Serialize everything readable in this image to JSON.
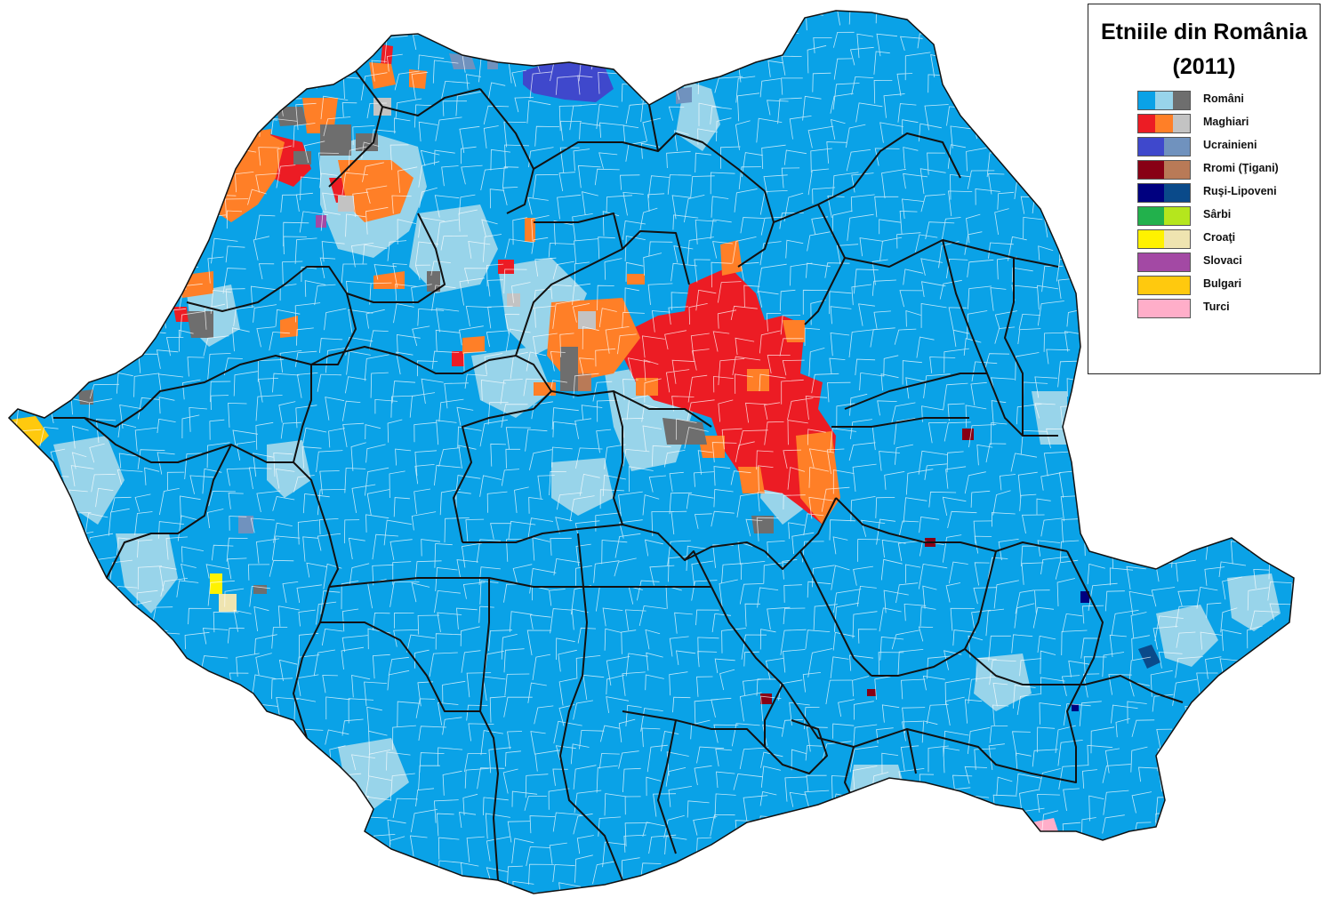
{
  "legend": {
    "title": "Etniile din România",
    "year": "(2011)",
    "items": [
      {
        "label": "Români",
        "colors": [
          "#0aa2e7",
          "#98d4ea",
          "#6e6e6e"
        ]
      },
      {
        "label": "Maghiari",
        "colors": [
          "#ec1c24",
          "#ff7f27",
          "#c3c3c3"
        ]
      },
      {
        "label": "Ucrainieni",
        "colors": [
          "#3f48cc",
          "#7092be"
        ]
      },
      {
        "label": "Rromi (Ţigani)",
        "colors": [
          "#880015",
          "#b97a57"
        ]
      },
      {
        "label": "Ruşi-Lipoveni",
        "colors": [
          "#00007f",
          "#0a4a8a"
        ]
      },
      {
        "label": "Sârbi",
        "colors": [
          "#22b14c",
          "#b5e61d"
        ]
      },
      {
        "label": "Croaţi",
        "colors": [
          "#fff200",
          "#efe4b0"
        ]
      },
      {
        "label": "Slovaci",
        "colors": [
          "#a349a4"
        ]
      },
      {
        "label": "Bulgari",
        "colors": [
          "#ffc90e"
        ]
      },
      {
        "label": "Turci",
        "colors": [
          "#ffaec9"
        ]
      }
    ]
  },
  "map": {
    "colors": {
      "base": "#0aa2e7",
      "light": "#98d4ea",
      "border": "#111111",
      "commune_line": "#ffffff"
    }
  }
}
